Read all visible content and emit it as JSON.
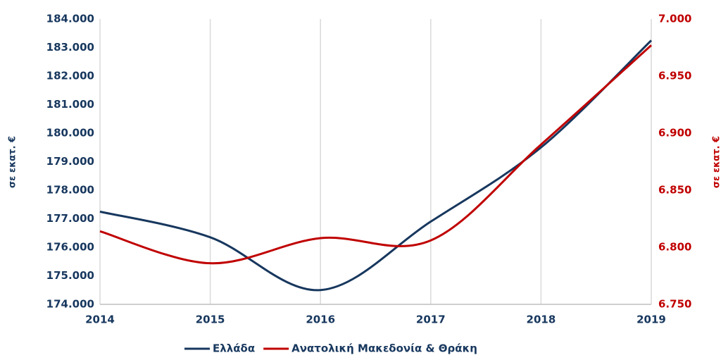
{
  "chart_data": {
    "type": "line",
    "x": [
      2014,
      2015,
      2016,
      2017,
      2018,
      2019
    ],
    "xlim": [
      2014,
      2019
    ],
    "xticks": [
      2014,
      2015,
      2016,
      2017,
      2018,
      2019
    ],
    "ylim": [
      174000,
      184000
    ],
    "yticks": [
      {
        "value": 174000,
        "label": "174.000"
      },
      {
        "value": 175000,
        "label": "175.000"
      },
      {
        "value": 176000,
        "label": "176.000"
      },
      {
        "value": 177000,
        "label": "177.000"
      },
      {
        "value": 178000,
        "label": "178.000"
      },
      {
        "value": 179000,
        "label": "179.000"
      },
      {
        "value": 180000,
        "label": "180.000"
      },
      {
        "value": 181000,
        "label": "181.000"
      },
      {
        "value": 182000,
        "label": "182.000"
      },
      {
        "value": 183000,
        "label": "183.000"
      },
      {
        "value": 184000,
        "label": "184.000"
      }
    ],
    "y2lim": [
      6750,
      7000
    ],
    "y2ticks": [
      {
        "value": 6750,
        "label": "6.750"
      },
      {
        "value": 6800,
        "label": "6.800"
      },
      {
        "value": 6850,
        "label": "6.850"
      },
      {
        "value": 6900,
        "label": "6.900"
      },
      {
        "value": 6950,
        "label": "6.950"
      },
      {
        "value": 7000,
        "label": "7.000"
      }
    ],
    "ylabel": "σε εκατ. €",
    "y2label": "σε εκατ. €",
    "grid": true,
    "series": [
      {
        "name": "Ελλάδα",
        "color": "#17375e",
        "values": [
          177250,
          176350,
          174500,
          176900,
          179500,
          183250
        ]
      },
      {
        "name": "Ανατολική Μακεδονία & Θράκη",
        "color": "#c00000",
        "axis": "y2",
        "values": [
          6814,
          6786,
          6808,
          6806,
          6890,
          6977
        ]
      }
    ]
  }
}
